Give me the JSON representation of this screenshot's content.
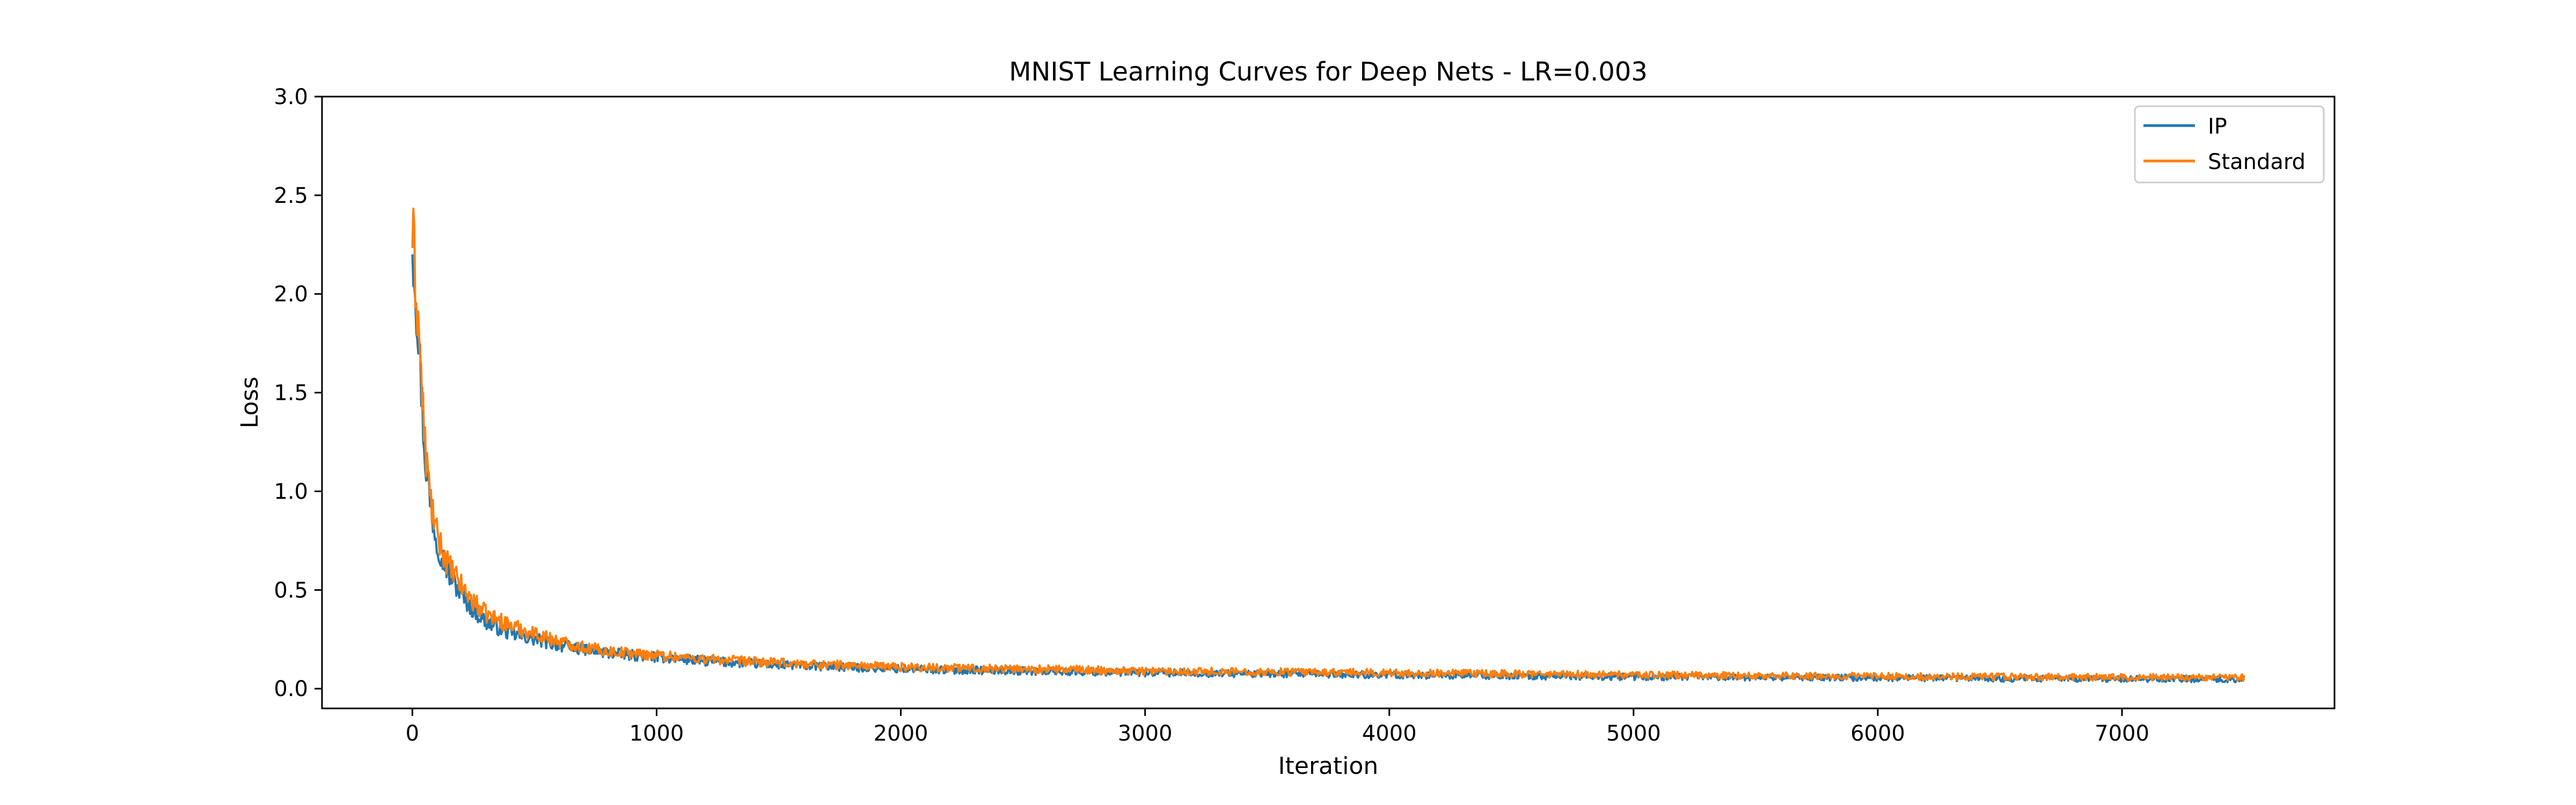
{
  "figure": {
    "background": "#ffffff"
  },
  "chart_data": {
    "type": "line",
    "title": "MNIST Learning Curves for Deep Nets - LR=0.003",
    "xlabel": "Iteration",
    "ylabel": "Loss",
    "xlim": [
      -370,
      7870
    ],
    "ylim": [
      -0.1,
      3.0
    ],
    "xticks": [
      0,
      1000,
      2000,
      3000,
      4000,
      5000,
      6000,
      7000
    ],
    "xtick_labels": [
      "0",
      "1000",
      "2000",
      "3000",
      "4000",
      "5000",
      "6000",
      "7000"
    ],
    "yticks": [
      0.0,
      0.5,
      1.0,
      1.5,
      2.0,
      2.5,
      3.0
    ],
    "ytick_labels": [
      "0.0",
      "0.5",
      "1.0",
      "1.5",
      "2.0",
      "2.5",
      "3.0"
    ],
    "grid": false,
    "legend": {
      "position": "top-right",
      "entries": [
        "IP",
        "Standard"
      ]
    },
    "series": [
      {
        "name": "IP",
        "color": "#1f77b4",
        "x": [
          0,
          25,
          50,
          75,
          100,
          150,
          200,
          250,
          300,
          400,
          500,
          600,
          700,
          800,
          1000,
          1200,
          1500,
          2000,
          2500,
          3000,
          3500,
          4000,
          4500,
          5000,
          5500,
          6000,
          6500,
          7000,
          7500
        ],
        "y": [
          2.3,
          1.8,
          1.2,
          0.92,
          0.75,
          0.58,
          0.48,
          0.4,
          0.34,
          0.28,
          0.25,
          0.22,
          0.2,
          0.18,
          0.16,
          0.14,
          0.12,
          0.1,
          0.09,
          0.08,
          0.075,
          0.07,
          0.065,
          0.06,
          0.058,
          0.055,
          0.052,
          0.05,
          0.048
        ]
      },
      {
        "name": "Standard",
        "color": "#ff7f0e",
        "x": [
          0,
          25,
          50,
          75,
          100,
          150,
          200,
          250,
          300,
          400,
          500,
          600,
          700,
          800,
          1000,
          1200,
          1500,
          2000,
          2500,
          3000,
          3500,
          4000,
          4500,
          5000,
          5500,
          6000,
          6500,
          7000,
          7500
        ],
        "y": [
          2.31,
          1.85,
          1.25,
          0.95,
          0.78,
          0.62,
          0.52,
          0.44,
          0.38,
          0.32,
          0.28,
          0.24,
          0.21,
          0.19,
          0.17,
          0.15,
          0.13,
          0.11,
          0.1,
          0.09,
          0.085,
          0.08,
          0.075,
          0.07,
          0.066,
          0.063,
          0.06,
          0.058,
          0.056
        ]
      }
    ]
  }
}
